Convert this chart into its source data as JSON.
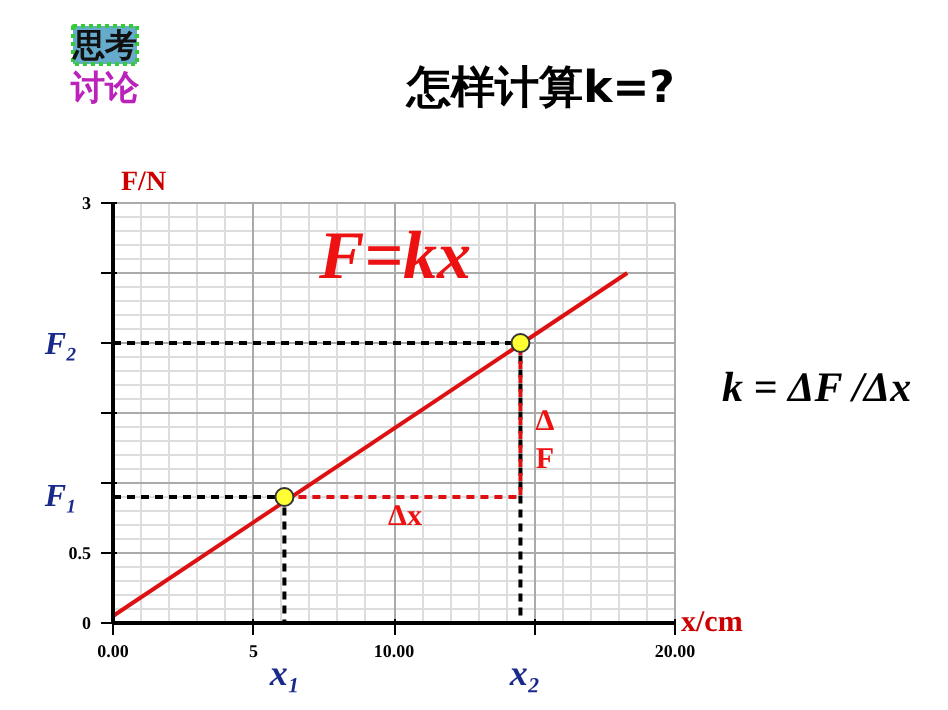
{
  "chart_data": {
    "type": "line",
    "title": "怎样计算k=?",
    "xlabel": "x/cm",
    "ylabel": "F/N",
    "xlim": [
      0,
      20
    ],
    "ylim": [
      0,
      3
    ],
    "xticks": [
      {
        "value": 0,
        "label": "0.00"
      },
      5,
      {
        "value": 10,
        "label": "10.00"
      },
      {
        "value": 15,
        "label": null
      },
      {
        "value": 20,
        "label": "20.00"
      }
    ],
    "yticks": [
      0,
      0.5,
      {
        "value": 1,
        "label": null
      },
      {
        "value": 1.5,
        "label": null
      },
      {
        "value": 2,
        "label": null
      },
      {
        "value": 2.5,
        "label": null
      },
      3
    ],
    "grid": true,
    "series": [
      {
        "color": "#dd1111",
        "x": [
          0,
          18.3
        ],
        "values": [
          0.05,
          2.5
        ]
      },
      {
        "color": "#000000",
        "line_style": "dashed",
        "x": [
          0,
          6.1,
          6.1
        ],
        "values": [
          0.9,
          0.9,
          0
        ]
      },
      {
        "color": "#000000",
        "line_style": "dashed",
        "x": [
          0,
          14.5,
          14.5
        ],
        "values": [
          2.0,
          2.0,
          0
        ]
      },
      {
        "color": "#dd1111",
        "line_style": "dashed",
        "x": [
          6.1,
          14.5,
          14.5
        ],
        "values": [
          0.9,
          0.9,
          2.0
        ]
      },
      {
        "type": "scatter",
        "color": "#ffff33",
        "marker": "circle",
        "x": [
          6.1,
          14.5
        ],
        "values": [
          0.9,
          2.0
        ]
      }
    ],
    "annotations": [
      "F=kx",
      "Δx",
      "Δ\nF",
      "F₁",
      "F₂",
      "x₁",
      "x₂",
      "k = ΔF /Δx",
      "思考",
      "讨论"
    ]
  }
}
